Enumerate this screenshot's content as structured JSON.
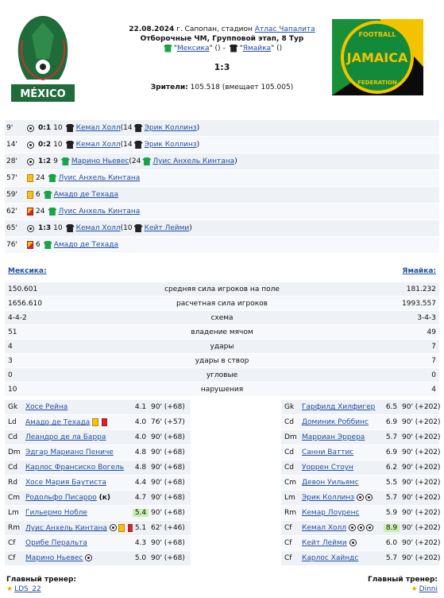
{
  "header": {
    "line1_date": "22.08.2024",
    "line1_rest": " г. Сапопан, стадион ",
    "stadium": "Атлас Чапалита",
    "line2": "Отборочные ЧМ, Групповой этап, 8 Тур",
    "home_team_link": "Мексика",
    "away_team_link": "Ямайка",
    "home_paren": "()",
    "away_paren": "()",
    "dash": " - ",
    "score": "1:3",
    "attendance_label": "Зрители:",
    "attendance_value": "105.518 (вмещает 105.005)"
  },
  "logos": {
    "home_text": "MÉXICO",
    "away_text_top": "FOOTBALL",
    "away_text_mid": "JAMAICA",
    "away_text_bot": "FEDERATION"
  },
  "events": [
    {
      "min": "9'",
      "type": "goal",
      "score": "0:1",
      "num": "10",
      "team": "away",
      "player": "Кемал Холл",
      "assist_pre": " (14 ",
      "assist": "Эрик Коллинз",
      "assist_post": ")"
    },
    {
      "min": "14'",
      "type": "goal",
      "score": "0:2",
      "num": "10",
      "team": "away",
      "player": "Кемал Холл",
      "assist_pre": " (14 ",
      "assist": "Эрик Коллинз",
      "assist_post": ")"
    },
    {
      "min": "28'",
      "type": "goal",
      "score": "1:2",
      "num": "9",
      "team": "home",
      "player": "Марино Ньевес",
      "assist_pre": " (24 ",
      "assist": "Луис Анхель Кинтана",
      "assist_post": ")"
    },
    {
      "min": "57'",
      "type": "yellow",
      "num": "24",
      "team": "home",
      "player": "Луис Анхель Кинтана"
    },
    {
      "min": "59'",
      "type": "yellow",
      "num": "6",
      "team": "home",
      "player": "Амадо де Техада"
    },
    {
      "min": "62'",
      "type": "redyellow",
      "num": "24",
      "team": "home",
      "player": "Луис Анхель Кинтана"
    },
    {
      "min": "65'",
      "type": "goal",
      "score": "1:3",
      "num": "10",
      "team": "away",
      "player": "Кемал Холл",
      "assist_pre": " (10 ",
      "assist": "Кейт Лейми",
      "assist_post": ")"
    },
    {
      "min": "76'",
      "type": "redyellow",
      "num": "6",
      "team": "home",
      "player": "Амадо де Техада"
    }
  ],
  "stats": {
    "home_name": "Мексика:",
    "away_name": "Ямайка:",
    "rows": [
      {
        "l": "150.601",
        "m": "средняя сила игроков на поле",
        "r": "181.232"
      },
      {
        "l": "1656.610",
        "m": "расчетная сила игроков",
        "r": "1993.557"
      },
      {
        "l": "4-4-2",
        "m": "схема",
        "r": "3-4-3"
      },
      {
        "l": "51",
        "m": "владение мячом",
        "r": "49"
      },
      {
        "l": "4",
        "m": "удары",
        "r": "7"
      },
      {
        "l": "3",
        "m": "удары в створ",
        "r": "7"
      },
      {
        "l": "0",
        "m": "угловые",
        "r": "0"
      },
      {
        "l": "10",
        "m": "нарушения",
        "r": "4"
      }
    ]
  },
  "home_lineup": [
    {
      "pos": "Gk",
      "name": "Хосе Рейна",
      "rating": "4.1",
      "mins": "90' (+68)"
    },
    {
      "pos": "Ld",
      "name": "Амадо де Техада",
      "icons": "yr",
      "rating": "4.0",
      "mins": "76' (+57)"
    },
    {
      "pos": "Cd",
      "name": "Леандро де ла Барра",
      "rating": "4.0",
      "mins": "90' (+68)"
    },
    {
      "pos": "Dm",
      "name": "Эдгар Мариано Пениче",
      "rating": "4.8",
      "mins": "90' (+68)"
    },
    {
      "pos": "Cd",
      "name": "Карлос Франсиско Вогель",
      "rating": "4.8",
      "mins": "90' (+68)"
    },
    {
      "pos": "Rd",
      "name": "Хосе Мария Баутиста",
      "rating": "4.4",
      "mins": "90' (+68)"
    },
    {
      "pos": "Cm",
      "name": "Родольфо Писарро",
      "suffix": "(к)",
      "rating": "4.7",
      "mins": "90' (+68)"
    },
    {
      "pos": "Lm",
      "name": "Гильермо Нобле",
      "rating": "5.4",
      "hl": true,
      "mins": "90' (+68)"
    },
    {
      "pos": "Rm",
      "name": "Луис Анхель Кинтана",
      "icons": "byr",
      "rating": "5.1",
      "mins": "62' (+46)"
    },
    {
      "pos": "Cf",
      "name": "Орибе Перальта",
      "rating": "4.3",
      "mins": "90' (+68)"
    },
    {
      "pos": "Cf",
      "name": "Марино Ньевес",
      "icons": "b",
      "rating": "5.0",
      "mins": "90' (+68)"
    }
  ],
  "away_lineup": [
    {
      "pos": "Gk",
      "name": "Гарфилд Хилфигер",
      "rating": "6.5",
      "mins": "90' (+202)"
    },
    {
      "pos": "Cd",
      "name": "Доминик Роббинс",
      "rating": "6.9",
      "mins": "90' (+202)"
    },
    {
      "pos": "Dm",
      "name": "Марриан Эррера",
      "rating": "5.7",
      "mins": "90' (+202)"
    },
    {
      "pos": "Cd",
      "name": "Санни Ваттис",
      "rating": "6.9",
      "mins": "90' (+202)"
    },
    {
      "pos": "Cd",
      "name": "Уоррен Стоун",
      "rating": "6.2",
      "mins": "90' (+202)"
    },
    {
      "pos": "Cm",
      "name": "Девон Уильямс",
      "rating": "5.5",
      "mins": "90' (+202)"
    },
    {
      "pos": "Lm",
      "name": "Эрик Коллинз",
      "icons": "bb",
      "rating": "5.7",
      "mins": "90' (+202)"
    },
    {
      "pos": "Rm",
      "name": "Кемар Лоуренс",
      "rating": "5.9",
      "mins": "90' (+202)"
    },
    {
      "pos": "Cf",
      "name": "Кемал Холл",
      "icons": "bbb",
      "rating": "8.9",
      "hl": true,
      "mins": "90' (+202)"
    },
    {
      "pos": "Cf",
      "name": "Кейт Лейми",
      "icons": "b",
      "rating": "6.0",
      "mins": "90' (+202)"
    },
    {
      "pos": "Cf",
      "name": "Карлос Хайндс",
      "rating": "5.7",
      "mins": "90' (+202)"
    }
  ],
  "coaches": {
    "label": "Главный тренер:",
    "home": "LDS_22",
    "away": "Dinni"
  },
  "colors": {
    "link": "#1f4fa3",
    "row_a": "#eef1f6",
    "row_b": "#f7f8fb",
    "highlight": "#c9f0b0",
    "home_shirt": "#1aa34a",
    "away_shirt": "#222222"
  }
}
